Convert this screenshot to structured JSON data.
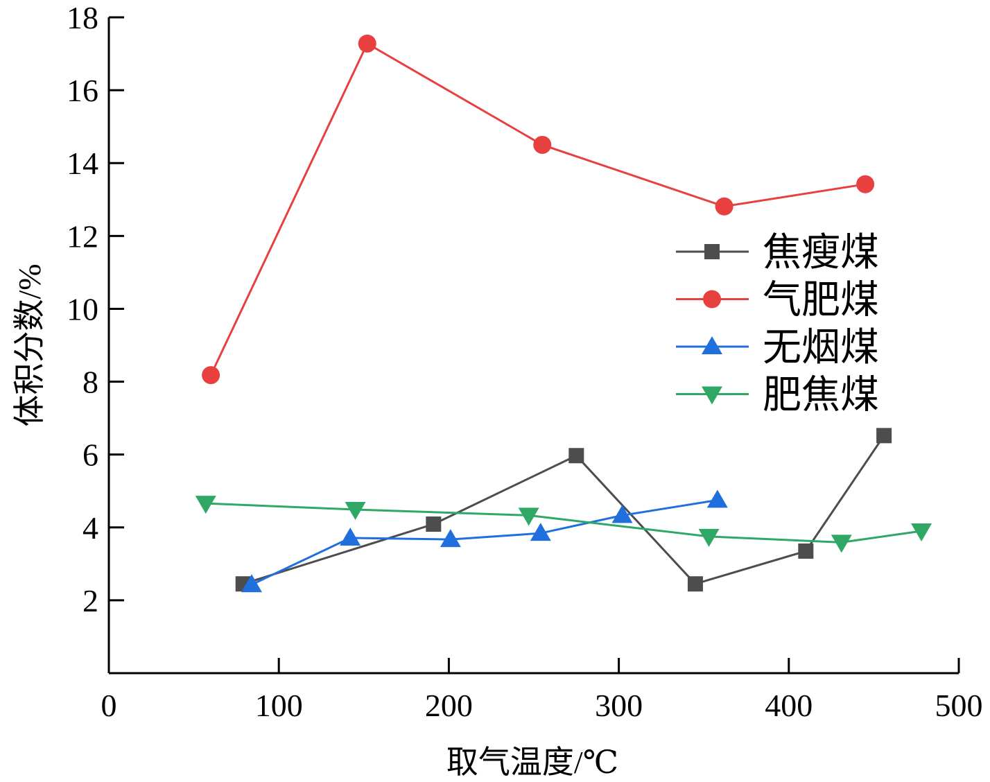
{
  "chart_data": {
    "type": "line",
    "title": "",
    "xlabel": "取气温度/℃",
    "ylabel": "体积分数/%",
    "xlim": [
      0,
      500
    ],
    "ylim": [
      0,
      18
    ],
    "xticks": [
      0,
      100,
      200,
      300,
      400,
      500
    ],
    "yticks": [
      2,
      4,
      6,
      8,
      10,
      12,
      14,
      16,
      18
    ],
    "grid": false,
    "legend_position": "right",
    "series": [
      {
        "name": "焦瘦煤",
        "color": "#4d4d4d",
        "marker": "square",
        "x": [
          79,
          191,
          275,
          345,
          410,
          456
        ],
        "y": [
          2.45,
          4.09,
          5.97,
          2.45,
          3.35,
          6.52
        ]
      },
      {
        "name": "气肥煤",
        "color": "#e8403f",
        "marker": "circle",
        "x": [
          60,
          152,
          255,
          362,
          445
        ],
        "y": [
          8.18,
          17.28,
          14.5,
          12.81,
          13.42
        ]
      },
      {
        "name": "无烟煤",
        "color": "#1f6fdc",
        "marker": "triangle-up",
        "x": [
          84,
          142,
          201,
          254,
          302,
          358
        ],
        "y": [
          2.43,
          3.71,
          3.67,
          3.84,
          4.33,
          4.75
        ]
      },
      {
        "name": "肥焦煤",
        "color": "#2fa865",
        "marker": "triangle-down",
        "x": [
          57,
          145,
          247,
          353,
          431,
          478
        ],
        "y": [
          4.66,
          4.49,
          4.33,
          3.75,
          3.59,
          3.9
        ]
      }
    ]
  }
}
